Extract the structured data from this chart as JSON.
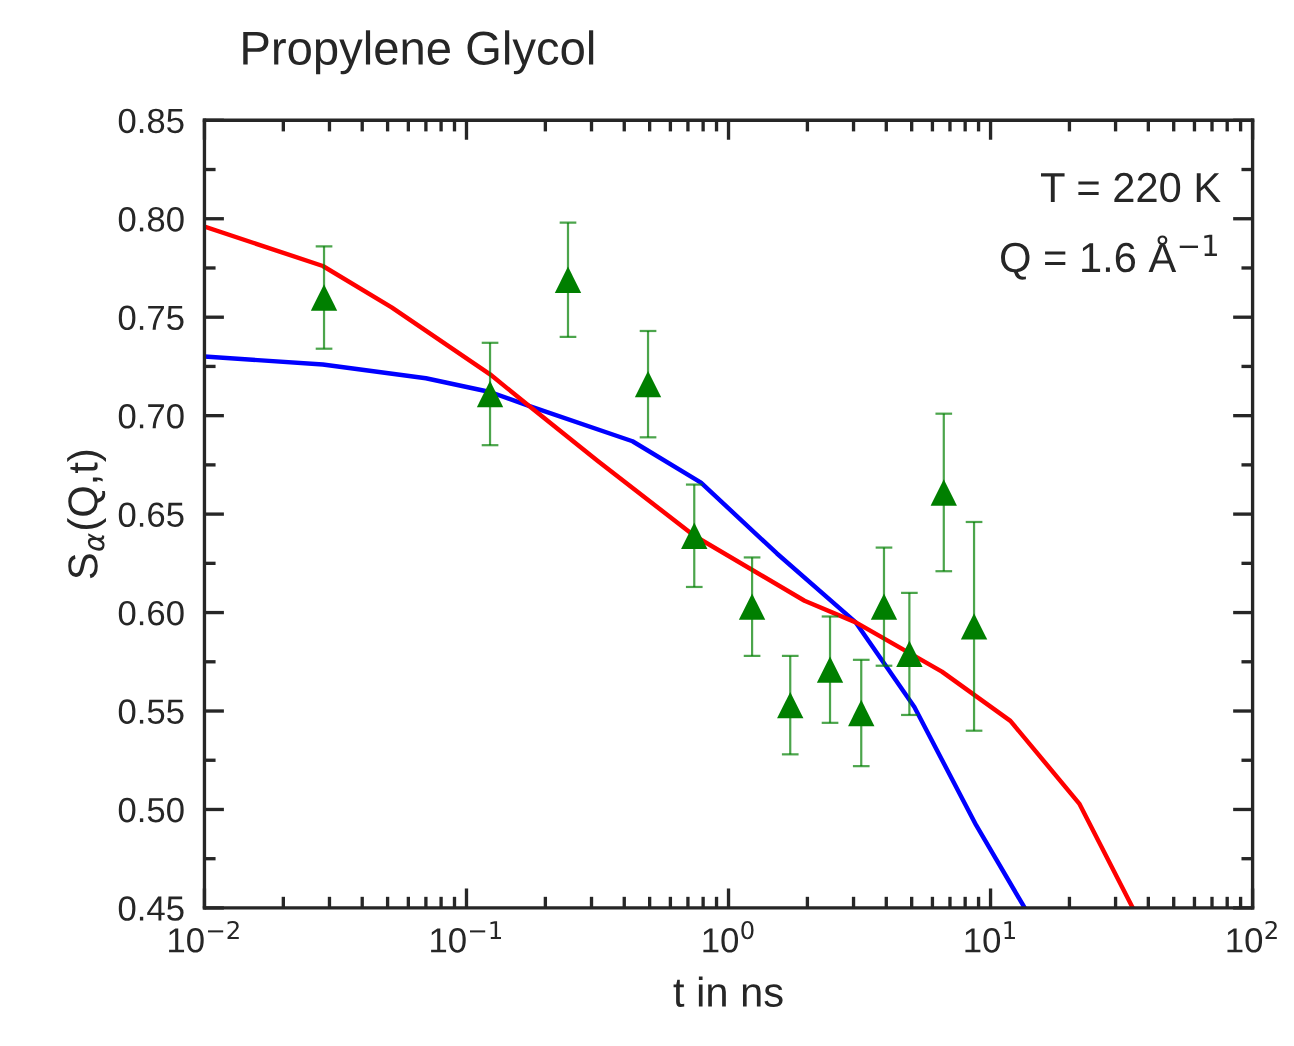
{
  "chart_data": {
    "type": "scatter",
    "title": "Propylene Glycol",
    "xlabel": "t in ns",
    "ylabel": "S$_{α}$(Q,t)",
    "annotations": [
      "T = 220 K",
      "Q = 1.6 Å$^{−1}$"
    ],
    "log": "x",
    "grid": false,
    "xlim": [
      0.01,
      100
    ],
    "ylim": [
      0.45,
      0.85
    ],
    "xticks": [
      {
        "value": 0.01,
        "label": "10$^{−2}$"
      },
      {
        "value": 0.1,
        "label": "10$^{−1}$"
      },
      {
        "value": 1,
        "label": "10$^{0}$"
      },
      {
        "value": 10,
        "label": "10$^{1}$"
      },
      {
        "value": 100,
        "label": "10$^{2}$"
      }
    ],
    "yticks": [
      {
        "value": 0.45,
        "label": "0.45"
      },
      {
        "value": 0.5,
        "label": "0.50"
      },
      {
        "value": 0.55,
        "label": "0.55"
      },
      {
        "value": 0.6,
        "label": "0.60"
      },
      {
        "value": 0.65,
        "label": "0.65"
      },
      {
        "value": 0.7,
        "label": "0.70"
      },
      {
        "value": 0.75,
        "label": "0.75"
      },
      {
        "value": 0.8,
        "label": "0.80"
      },
      {
        "value": 0.85,
        "label": "0.85"
      }
    ],
    "series": [
      {
        "type": "line",
        "color": "#0000ff",
        "marker": "none",
        "line_style": "solid",
        "x": [
          0.01,
          0.0283,
          0.07,
          0.123,
          0.173,
          0.43,
          0.785,
          1.53,
          3.06,
          5.12,
          8.81,
          13.5
        ],
        "values": [
          0.73,
          0.726,
          0.719,
          0.712,
          0.705,
          0.687,
          0.666,
          0.63,
          0.595,
          0.552,
          0.492,
          0.45
        ]
      },
      {
        "type": "line",
        "color": "#ff0000",
        "marker": "none",
        "line_style": "solid",
        "x": [
          0.01,
          0.0283,
          0.0518,
          0.123,
          0.173,
          0.317,
          0.74,
          1.95,
          3.06,
          6.52,
          11.9,
          21.8,
          34.9
        ],
        "values": [
          0.796,
          0.776,
          0.755,
          0.721,
          0.705,
          0.677,
          0.639,
          0.606,
          0.595,
          0.57,
          0.545,
          0.503,
          0.45
        ]
      },
      {
        "color": "#007f00",
        "marker": "triangle",
        "x": [
          0.0286,
          0.123,
          0.244,
          0.493,
          0.74,
          1.23,
          1.72,
          2.44,
          3.21,
          3.92,
          4.9,
          6.63,
          8.65
        ],
        "values": [
          0.76,
          0.711,
          0.769,
          0.716,
          0.639,
          0.603,
          0.553,
          0.571,
          0.549,
          0.603,
          0.579,
          0.661,
          0.593
        ],
        "errors": [
          0.026,
          0.026,
          0.029,
          0.027,
          0.026,
          0.025,
          0.025,
          0.027,
          0.027,
          0.03,
          0.031,
          0.04,
          0.053
        ]
      }
    ]
  }
}
